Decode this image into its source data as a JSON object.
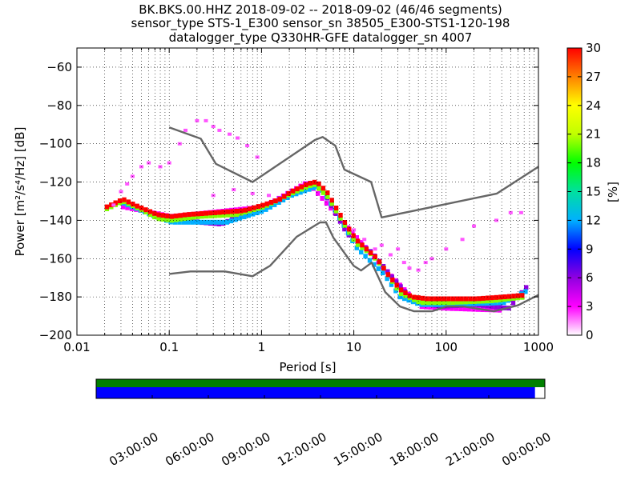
{
  "title": {
    "line1": "BK.BKS.00.HHZ   2018-09-02 -- 2018-09-02  (46/46 segments)",
    "line2": "sensor_type STS-1_E300 sensor_sn 38505_E300-STS1-120-198",
    "line3": "datalogger_type Q330HR-GFE datalogger_sn 4007"
  },
  "chart_data": [
    {
      "type": "heatmap",
      "xlabel": "Period [s]",
      "ylabel": "Power [m²/s⁴/Hz] [dB]",
      "xscale": "log",
      "xlim": [
        0.01,
        1000
      ],
      "ylim": [
        -200,
        -50
      ],
      "xticks": [
        "0.01",
        "0.1",
        "1",
        "10",
        "100",
        "1000"
      ],
      "xtick_values": [
        0.01,
        0.1,
        1,
        10,
        100,
        1000
      ],
      "yticks": [
        "−60",
        "−80",
        "−100",
        "−120",
        "−140",
        "−160",
        "−180",
        "−200"
      ],
      "ytick_values": [
        -60,
        -80,
        -100,
        -120,
        -140,
        -160,
        -180,
        -200
      ],
      "grid": true,
      "colorbar": {
        "label": "[%]",
        "range": [
          0,
          30
        ],
        "ticks": [
          "0",
          "3",
          "6",
          "9",
          "12",
          "15",
          "18",
          "21",
          "24",
          "27",
          "30"
        ],
        "tick_values": [
          0,
          3,
          6,
          9,
          12,
          15,
          18,
          21,
          24,
          27,
          30
        ],
        "colormap": [
          "#ffffff",
          "#ff00ff",
          "#9000e0",
          "#0000ff",
          "#00b0ff",
          "#00e0a0",
          "#00ff00",
          "#c0ff00",
          "#ffff00",
          "#ff8000",
          "#ff0000"
        ]
      },
      "noise_models": {
        "color": "#666666",
        "nhnm": [
          [
            0.1,
            -91.5
          ],
          [
            0.22,
            -97.4
          ],
          [
            0.32,
            -110.5
          ],
          [
            0.8,
            -120
          ],
          [
            3.8,
            -98
          ],
          [
            4.6,
            -96.5
          ],
          [
            6.3,
            -101
          ],
          [
            7.9,
            -113.5
          ],
          [
            15.4,
            -120
          ],
          [
            20,
            -138.5
          ],
          [
            354.8,
            -126
          ],
          [
            1000,
            -112
          ]
        ],
        "nlnm": [
          [
            0.1,
            -168
          ],
          [
            0.17,
            -166.7
          ],
          [
            0.4,
            -166.7
          ],
          [
            0.8,
            -169.2
          ],
          [
            1.24,
            -163.7
          ],
          [
            2.4,
            -148.6
          ],
          [
            4.3,
            -141.1
          ],
          [
            5,
            -141.1
          ],
          [
            6,
            -149
          ],
          [
            10,
            -163.8
          ],
          [
            12,
            -166.2
          ],
          [
            15.6,
            -162.1
          ],
          [
            21.9,
            -177.5
          ],
          [
            31.6,
            -185
          ],
          [
            45,
            -187.5
          ],
          [
            70,
            -187.5
          ],
          [
            101,
            -185
          ],
          [
            154,
            -185
          ],
          [
            328,
            -187.5
          ],
          [
            600,
            -184.4
          ],
          [
            1000,
            -179
          ]
        ]
      },
      "density_series": [
        {
          "level": 30,
          "points": [
            [
              0.02,
              -133
            ],
            [
              0.03,
              -129
            ],
            [
              0.04,
              -132
            ],
            [
              0.05,
              -134
            ],
            [
              0.07,
              -137
            ],
            [
              0.1,
              -138
            ],
            [
              0.15,
              -137
            ],
            [
              0.3,
              -136
            ],
            [
              0.6,
              -135
            ],
            [
              1,
              -132
            ],
            [
              1.5,
              -129
            ],
            [
              2,
              -125
            ],
            [
              3,
              -121
            ],
            [
              3.5,
              -120
            ],
            [
              4,
              -121
            ],
            [
              5,
              -126
            ],
            [
              6,
              -133
            ],
            [
              8,
              -143
            ],
            [
              10,
              -150
            ],
            [
              13,
              -155
            ],
            [
              17,
              -160
            ],
            [
              22,
              -168
            ],
            [
              30,
              -176
            ],
            [
              40,
              -180
            ],
            [
              60,
              -181
            ],
            [
              100,
              -181
            ],
            [
              200,
              -181
            ],
            [
              400,
              -180
            ],
            [
              700,
              -179
            ]
          ]
        },
        {
          "level": 20,
          "points": [
            [
              0.02,
              -134
            ],
            [
              0.03,
              -130
            ],
            [
              0.05,
              -135
            ],
            [
              0.07,
              -139
            ],
            [
              0.1,
              -140
            ],
            [
              0.2,
              -138
            ],
            [
              0.5,
              -137
            ],
            [
              1,
              -133
            ],
            [
              2,
              -126
            ],
            [
              3.5,
              -121
            ],
            [
              5,
              -128
            ],
            [
              7,
              -140
            ],
            [
              10,
              -152
            ],
            [
              15,
              -158
            ],
            [
              20,
              -165
            ],
            [
              30,
              -178
            ],
            [
              50,
              -183
            ],
            [
              100,
              -183
            ],
            [
              300,
              -182
            ],
            [
              700,
              -180
            ]
          ]
        },
        {
          "level": 12,
          "points": [
            [
              0.03,
              -131
            ],
            [
              0.06,
              -137
            ],
            [
              0.1,
              -141
            ],
            [
              0.2,
              -141
            ],
            [
              0.4,
              -141
            ],
            [
              1,
              -135
            ],
            [
              2,
              -127
            ],
            [
              4,
              -122
            ],
            [
              6,
              -135
            ],
            [
              10,
              -154
            ],
            [
              20,
              -168
            ],
            [
              30,
              -180
            ],
            [
              50,
              -184
            ],
            [
              100,
              -184
            ],
            [
              400,
              -183
            ],
            [
              700,
              -177
            ]
          ]
        },
        {
          "level": 6,
          "points": [
            [
              0.1,
              -138
            ],
            [
              0.2,
              -141
            ],
            [
              0.35,
              -142
            ],
            [
              0.6,
              -137
            ],
            [
              1,
              -134
            ],
            [
              2,
              -125
            ],
            [
              4,
              -121
            ],
            [
              8,
              -147
            ],
            [
              15,
              -157
            ],
            [
              25,
              -170
            ],
            [
              40,
              -181
            ],
            [
              80,
              -185
            ],
            [
              200,
              -184
            ],
            [
              450,
              -186
            ],
            [
              700,
              -175
            ]
          ]
        },
        {
          "level": 3,
          "points": [
            [
              0.03,
              -133
            ],
            [
              0.1,
              -138
            ],
            [
              1,
              -133
            ],
            [
              3,
              -120
            ],
            [
              20,
              -165
            ],
            [
              50,
              -185
            ],
            [
              100,
              -186
            ],
            [
              400,
              -187
            ]
          ]
        }
      ],
      "outlier_series": {
        "level": 2,
        "points": [
          [
            0.025,
            -132
          ],
          [
            0.03,
            -125
          ],
          [
            0.035,
            -121
          ],
          [
            0.04,
            -117
          ],
          [
            0.05,
            -112
          ],
          [
            0.06,
            -110
          ],
          [
            0.08,
            -112
          ],
          [
            0.1,
            -110
          ],
          [
            0.13,
            -100
          ],
          [
            0.15,
            -93
          ],
          [
            0.2,
            -88
          ],
          [
            0.25,
            -88
          ],
          [
            0.3,
            -91
          ],
          [
            0.35,
            -93
          ],
          [
            0.45,
            -95
          ],
          [
            0.55,
            -97
          ],
          [
            0.7,
            -101
          ],
          [
            0.9,
            -107
          ],
          [
            0.3,
            -127
          ],
          [
            0.5,
            -124
          ],
          [
            0.8,
            -126
          ],
          [
            1.2,
            -127
          ],
          [
            10,
            -145
          ],
          [
            13,
            -150
          ],
          [
            17,
            -155
          ],
          [
            20,
            -153
          ],
          [
            25,
            -158
          ],
          [
            35,
            -162
          ],
          [
            50,
            -166
          ],
          [
            70,
            -160
          ],
          [
            100,
            -155
          ],
          [
            150,
            -150
          ],
          [
            200,
            -143
          ],
          [
            350,
            -140
          ],
          [
            500,
            -136
          ],
          [
            650,
            -136
          ],
          [
            30,
            -155
          ],
          [
            40,
            -165
          ],
          [
            60,
            -162
          ]
        ]
      },
      "availability": {
        "time_ticks": [
          "03:00:00",
          "06:00:00",
          "09:00:00",
          "12:00:00",
          "15:00:00",
          "18:00:00",
          "21:00:00",
          "00:00:00"
        ],
        "data_fraction": 1.0,
        "gap_fraction_end": 0.022,
        "data_color": "#008000",
        "coverage_color": "#0000ff"
      }
    }
  ]
}
